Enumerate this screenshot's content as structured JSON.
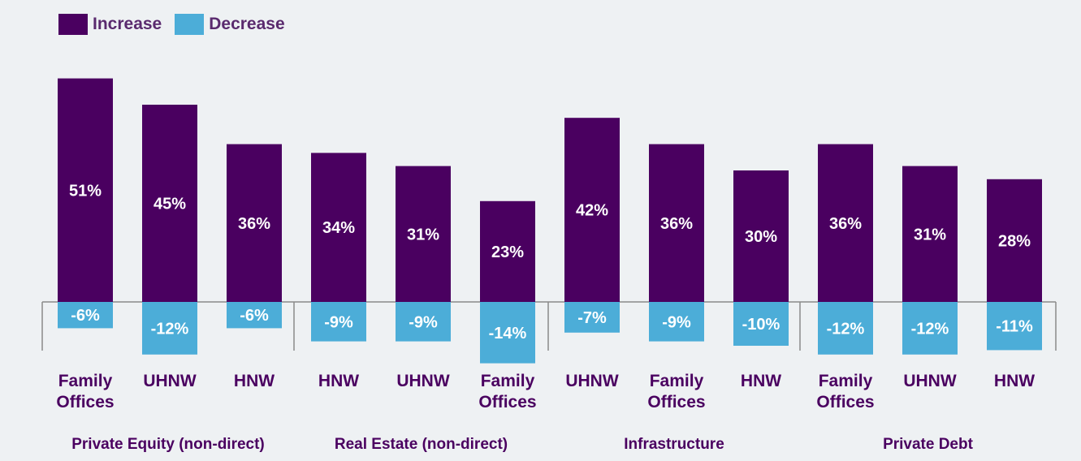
{
  "legend": {
    "increase_label": "Increase",
    "decrease_label": "Decrease"
  },
  "colors": {
    "increase": "#4a0060",
    "decrease": "#4cadd8",
    "axis": "#8a8a8a",
    "value_text": "#ffffff",
    "category_text": "#4a0060",
    "group_text": "#4a0060",
    "background": "#eef1f3"
  },
  "chart_data": {
    "type": "bar",
    "title": "",
    "xlabel": "",
    "ylabel": "",
    "groups": [
      {
        "name": "Private Equity (non-direct)",
        "categories": [
          "Family Offices",
          "UHNW",
          "HNW"
        ]
      },
      {
        "name": "Real Estate (non-direct)",
        "categories": [
          "HNW",
          "UHNW",
          "Family Offices"
        ]
      },
      {
        "name": "Infrastructure",
        "categories": [
          "UHNW",
          "Family Offices",
          "HNW"
        ]
      },
      {
        "name": "Private Debt",
        "categories": [
          "Family Offices",
          "UHNW",
          "HNW"
        ]
      }
    ],
    "series": [
      {
        "name": "Increase",
        "values": [
          51,
          45,
          36,
          34,
          31,
          23,
          42,
          36,
          30,
          36,
          31,
          28
        ],
        "labels": [
          "51%",
          "45%",
          "36%",
          "34%",
          "31%",
          "23%",
          "42%",
          "36%",
          "30%",
          "36%",
          "31%",
          "28%"
        ]
      },
      {
        "name": "Decrease",
        "values": [
          -6,
          -12,
          -6,
          -9,
          -9,
          -14,
          -7,
          -9,
          -10,
          -12,
          -12,
          -11
        ],
        "labels": [
          "-6%",
          "-12%",
          "-6%",
          "-9%",
          "-9%",
          "-14%",
          "-7%",
          "-9%",
          "-10%",
          "-12%",
          "-12%",
          "-11%"
        ]
      }
    ],
    "legend_position": "top-left",
    "grid": false
  }
}
